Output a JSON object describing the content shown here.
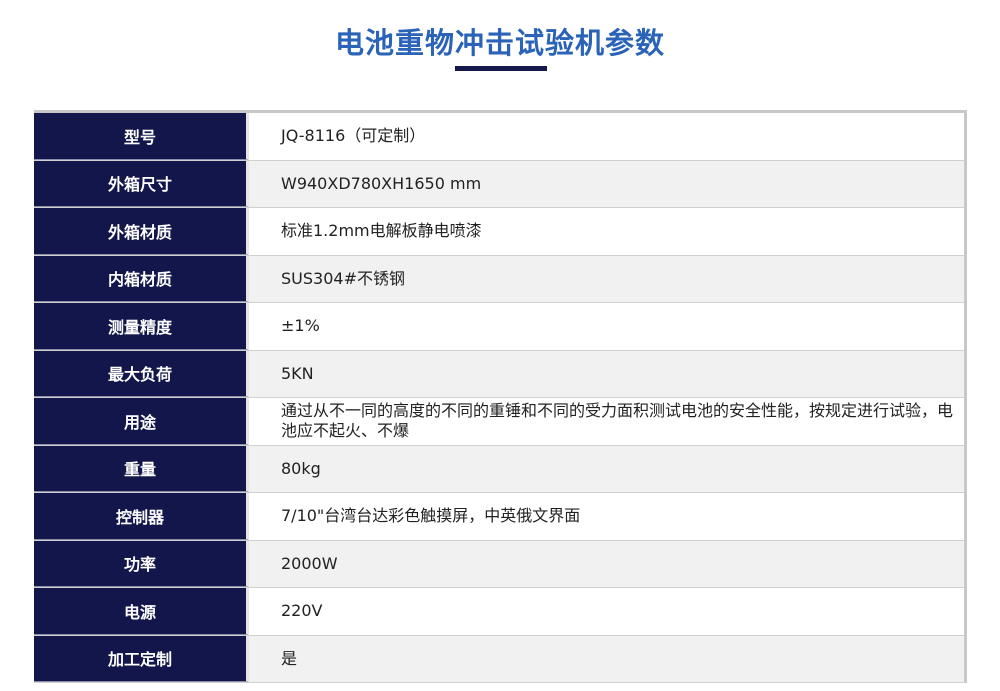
{
  "title": "电池重物冲击试验机参数",
  "rows": [
    {
      "key": "型号",
      "value": "JQ-8116（可定制）"
    },
    {
      "key": "外箱尺寸",
      "value": "W940XD780XH1650 mm"
    },
    {
      "key": "外箱材质",
      "value": "标准1.2mm电解板静电喷漆"
    },
    {
      "key": "内箱材质",
      "value": "SUS304#不锈钢"
    },
    {
      "key": "测量精度",
      "value": "±1%"
    },
    {
      "key": "最大负荷",
      "value": "5KN"
    },
    {
      "key": "用途",
      "value": "通过从不一同的高度的不同的重锤和不同的受力面积测试电池的安全性能，按规定进行试验，电池应不起火、不爆"
    },
    {
      "key": "重量",
      "value": "80kg"
    },
    {
      "key": "控制器",
      "value": "7/10\"台湾台达彩色触摸屏，中英俄文界面"
    },
    {
      "key": "功率",
      "value": "2000W"
    },
    {
      "key": "电源",
      "value": "220V"
    },
    {
      "key": "加工定制",
      "value": "是"
    }
  ]
}
